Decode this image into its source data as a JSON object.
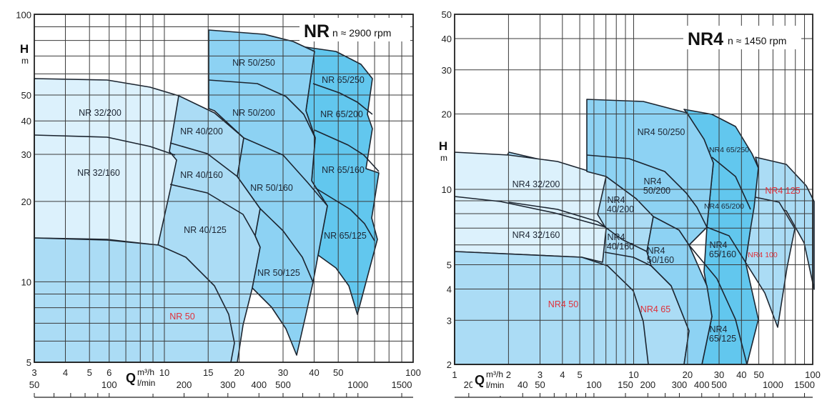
{
  "colors": {
    "family32": "#dcf1fc",
    "family40": "#abdcf5",
    "family50": "#8dd2f3",
    "family65": "#62c7ee",
    "curve": "#1c2530",
    "grid": "#3a3a3a",
    "red_label": "#e0303a"
  },
  "chart_data": [
    {
      "type": "area",
      "title": "NR",
      "subtitle": "n ≈ 2900 rpm",
      "ylabel": "H",
      "yunit": "m",
      "xlabel": "Q",
      "xunit": "m³/h",
      "xunit2": "l/min",
      "xscale": "log",
      "yscale": "log",
      "xlim": [
        3,
        100
      ],
      "ylim": [
        5,
        100
      ],
      "x_ticks": [
        "3",
        "4",
        "5",
        "6",
        "10",
        "15",
        "20",
        "30",
        "40",
        "50",
        "100"
      ],
      "y_ticks": [
        "5",
        "10",
        "20",
        "30",
        "40",
        "50",
        "100"
      ],
      "lmin_ticks": [
        "50",
        "100",
        "200",
        "300",
        "400",
        "500",
        "1000",
        "1500"
      ],
      "grid": true,
      "regions": [
        {
          "label": [
            "NR 50/250"
          ],
          "family": "50"
        },
        {
          "label": [
            "NR 65/250"
          ],
          "family": "65"
        },
        {
          "label": [
            "NR 32/200"
          ],
          "family": "32"
        },
        {
          "label": [
            "NR 50/200"
          ],
          "family": "50"
        },
        {
          "label": [
            "NR 65/200"
          ],
          "family": "65"
        },
        {
          "label": [
            "NR 40/200"
          ],
          "family": "40"
        },
        {
          "label": [
            "NR 32/160"
          ],
          "family": "32"
        },
        {
          "label": [
            "NR 40/160"
          ],
          "family": "40"
        },
        {
          "label": [
            "NR 65/160"
          ],
          "family": "65"
        },
        {
          "label": [
            "NR 50/160"
          ],
          "family": "50"
        },
        {
          "label": [
            "NR 40/125"
          ],
          "family": "40"
        },
        {
          "label": [
            "NR 65/125"
          ],
          "family": "65"
        },
        {
          "label": [
            "NR 50/125"
          ],
          "family": "50"
        },
        {
          "label": [
            "NR 50"
          ],
          "family": "40",
          "red": true
        }
      ]
    },
    {
      "type": "area",
      "title": "NR4",
      "subtitle": "n ≈ 1450 rpm",
      "ylabel": "H",
      "yunit": "m",
      "xlabel": "Q",
      "xunit": "m³/h",
      "xunit2": "l/min",
      "xscale": "log",
      "yscale": "log",
      "xlim": [
        1,
        100
      ],
      "ylim": [
        2,
        50
      ],
      "x_ticks": [
        "1",
        "2",
        "3",
        "4",
        "5",
        "10",
        "20",
        "30",
        "40",
        "50",
        "100"
      ],
      "y_ticks": [
        "2",
        "3",
        "4",
        "5",
        "10",
        "20",
        "30",
        "40",
        "50"
      ],
      "lmin_ticks": [
        "20",
        "40",
        "50",
        "100",
        "150",
        "200",
        "300",
        "400",
        "500",
        "1000",
        "1500"
      ],
      "grid": true,
      "regions": [
        {
          "label": [
            "NR4 50/250"
          ],
          "family": "50"
        },
        {
          "label": [
            "NR4 65/250"
          ],
          "family": "65",
          "small": true
        },
        {
          "label": [
            "NR4 32/200"
          ],
          "family": "32"
        },
        {
          "label": [
            "NR4",
            "50/200"
          ],
          "family": "50"
        },
        {
          "label": [
            "NR4 125"
          ],
          "family": "40",
          "red": true
        },
        {
          "label": [
            "NR4",
            "40/200"
          ],
          "family": "40"
        },
        {
          "label": [
            "NR4 65/200"
          ],
          "family": "65",
          "small": true
        },
        {
          "label": [
            "NR4 32/160"
          ],
          "family": "32"
        },
        {
          "label": [
            "NR4",
            "40/160"
          ],
          "family": "40"
        },
        {
          "label": [
            "NR4",
            "50/160"
          ],
          "family": "50"
        },
        {
          "label": [
            "NR4",
            "65/160"
          ],
          "family": "65"
        },
        {
          "label": [
            "NR4 100"
          ],
          "family": "40",
          "red": true,
          "small": true
        },
        {
          "label": [
            "NR4 50"
          ],
          "family": "40",
          "red": true
        },
        {
          "label": [
            "NR4 65"
          ],
          "family": "40",
          "red": true
        },
        {
          "label": [
            "NR4",
            "65/125"
          ],
          "family": "65"
        }
      ]
    }
  ]
}
